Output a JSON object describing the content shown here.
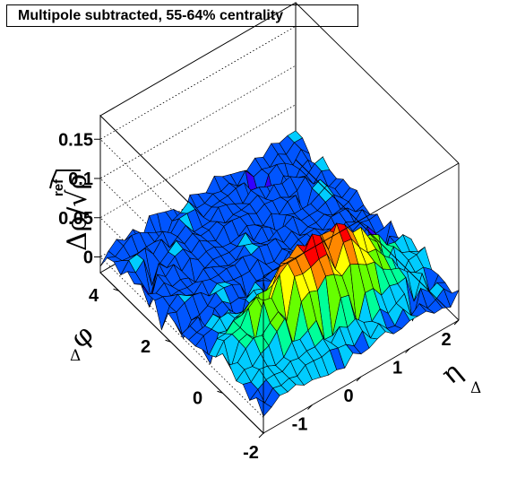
{
  "chart_data": {
    "type": "surface3d",
    "title": "Multipole subtracted, 55-64% centrality",
    "xlabel": "η",
    "xlabel_sub": "Δ",
    "ylabel": "φ",
    "ylabel_sub": "Δ",
    "zlabel": "Δρ/√ρ",
    "zlabel_sub": "ref",
    "x_ticks": [
      "-2",
      "-1",
      "0",
      "1",
      "2"
    ],
    "y_ticks": [
      "0",
      "2",
      "4"
    ],
    "z_ticks": [
      "0",
      "0.05",
      "0.1",
      "0.15"
    ],
    "xlim": [
      -2,
      2
    ],
    "ylim": [
      -1.57,
      4.71
    ],
    "zlim": [
      -0.02,
      0.18
    ],
    "grid": "back-walls dotted",
    "peak": {
      "eta": 0.0,
      "phi": 0.0,
      "value": 0.11
    },
    "peak_sigma_eta": 1.0,
    "peak_sigma_phi": 0.55,
    "baseline": 0.01,
    "colorscale": [
      "#3300ff",
      "#0055ff",
      "#00ccff",
      "#00ff99",
      "#66ff00",
      "#ffff00",
      "#ff8800",
      "#ff0000"
    ]
  }
}
